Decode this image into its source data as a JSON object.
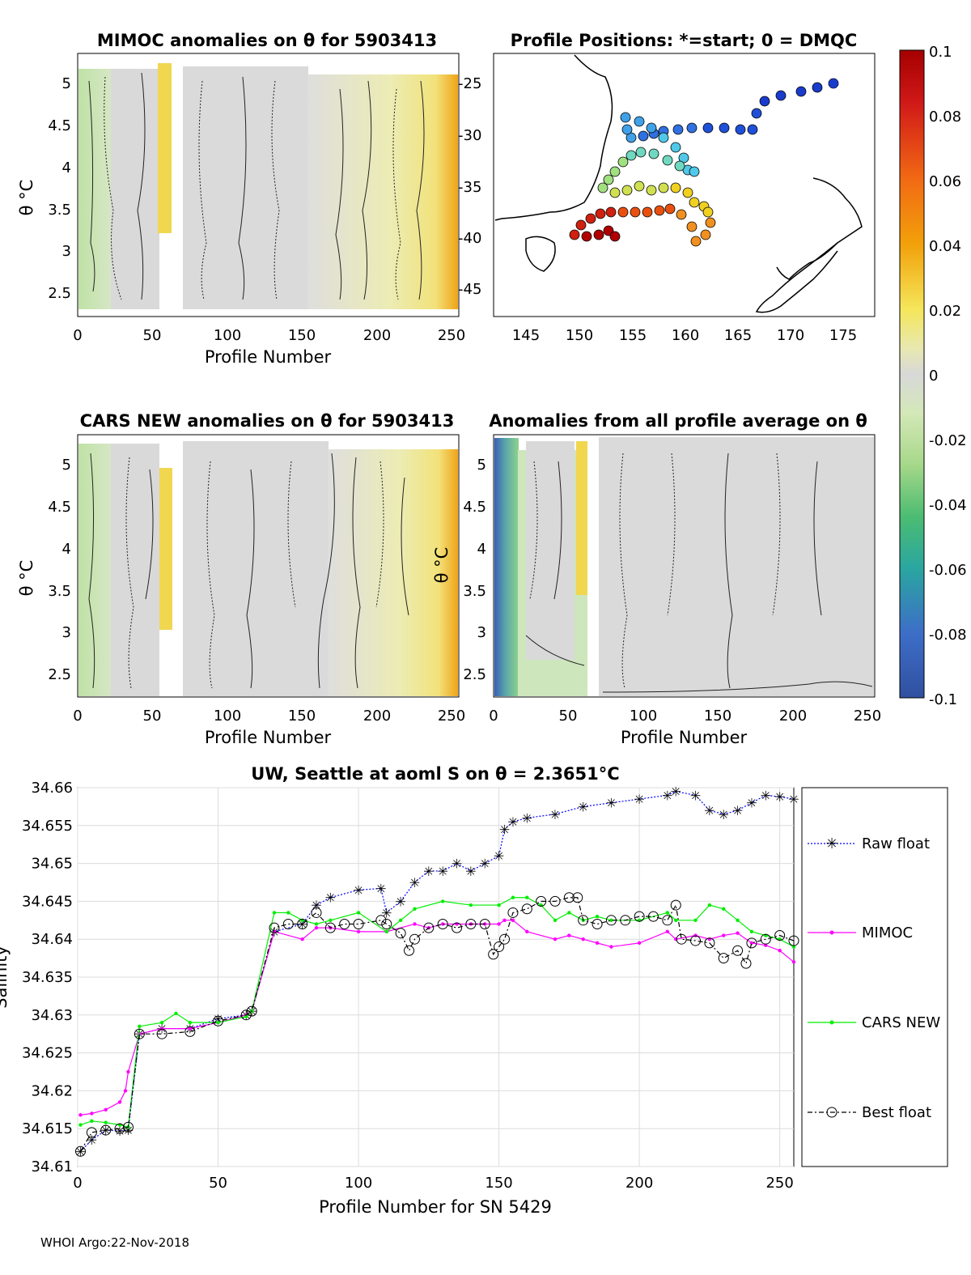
{
  "footer": "WHOI Argo:22-Nov-2018",
  "colorbar": {
    "ticks": [
      "0.1",
      "0.08",
      "0.06",
      "0.04",
      "0.02",
      "0",
      "-0.02",
      "-0.04",
      "-0.06",
      "-0.08",
      "-0.1"
    ],
    "range": [
      -0.1,
      0.1
    ]
  },
  "panels": {
    "mimoc": {
      "title": "MIMOC anomalies on θ  for 5903413",
      "xlabel": "Profile Number",
      "ylabel": "θ °C",
      "xticks": [
        "0",
        "50",
        "100",
        "150",
        "200",
        "250"
      ],
      "yticks": [
        "2.5",
        "3",
        "3.5",
        "4",
        "4.5",
        "5"
      ]
    },
    "map": {
      "title": "Profile Positions: *=start; 0 = DMQC",
      "xticks": [
        "145",
        "150",
        "155",
        "160",
        "165",
        "170",
        "175"
      ],
      "yticks": [
        "-25",
        "-30",
        "-35",
        "-40",
        "-45"
      ]
    },
    "cars": {
      "title": "CARS NEW anomalies on θ for 5903413",
      "xlabel": "Profile Number",
      "ylabel": "θ °C",
      "xticks": [
        "0",
        "50",
        "100",
        "150",
        "200",
        "250"
      ],
      "yticks": [
        "2.5",
        "3",
        "3.5",
        "4",
        "4.5",
        "5"
      ]
    },
    "avg": {
      "title": "Anomalies from all profile average on θ",
      "xlabel": "Profile Number",
      "ylabel": "θ °C",
      "xticks": [
        "0",
        "50",
        "100",
        "150",
        "200",
        "250"
      ],
      "yticks": [
        "2.5",
        "3",
        "3.5",
        "4",
        "4.5",
        "5"
      ]
    }
  },
  "chart_data": {
    "type": "line",
    "title": "UW, Seattle at aoml S on θ = 2.3651°C",
    "xlabel": "Profile Number for SN 5429",
    "ylabel": "Salinity",
    "xlim": [
      0,
      255
    ],
    "ylim": [
      34.61,
      34.66
    ],
    "xticks": [
      "0",
      "50",
      "100",
      "150",
      "200",
      "250"
    ],
    "yticks": [
      "34.61",
      "34.615",
      "34.62",
      "34.625",
      "34.63",
      "34.635",
      "34.64",
      "34.645",
      "34.65",
      "34.655",
      "34.66"
    ],
    "series": [
      {
        "name": "Raw float",
        "color": "#0000ff",
        "marker": "star",
        "x": [
          1,
          5,
          10,
          15,
          18,
          22,
          30,
          40,
          50,
          60,
          62,
          70,
          80,
          85,
          90,
          100,
          108,
          110,
          115,
          120,
          125,
          130,
          135,
          140,
          145,
          150,
          152,
          155,
          160,
          170,
          180,
          190,
          200,
          210,
          213,
          220,
          225,
          230,
          235,
          240,
          245,
          250,
          255
        ],
        "values": [
          34.612,
          34.6135,
          34.6148,
          34.6147,
          34.6148,
          34.6275,
          34.6282,
          34.6282,
          34.6295,
          34.63,
          34.6305,
          34.641,
          34.642,
          34.6445,
          34.6455,
          34.6465,
          34.6467,
          34.6435,
          34.645,
          34.6475,
          34.649,
          34.649,
          34.65,
          34.649,
          34.65,
          34.651,
          34.6545,
          34.6555,
          34.656,
          34.6565,
          34.6575,
          34.658,
          34.6585,
          34.659,
          34.6595,
          34.659,
          34.657,
          34.6565,
          34.657,
          34.658,
          34.659,
          34.6588,
          34.6585
        ]
      },
      {
        "name": "MIMOC",
        "color": "#ff00ff",
        "marker": "dot",
        "x": [
          1,
          5,
          10,
          15,
          17,
          18,
          22,
          30,
          40,
          50,
          60,
          62,
          70,
          80,
          85,
          90,
          100,
          110,
          120,
          125,
          130,
          135,
          140,
          145,
          150,
          152,
          155,
          160,
          170,
          175,
          180,
          185,
          190,
          200,
          210,
          213,
          220,
          225,
          230,
          235,
          240,
          245,
          250,
          255
        ],
        "values": [
          34.6168,
          34.617,
          34.6175,
          34.6185,
          34.62,
          34.6225,
          34.6275,
          34.6282,
          34.6282,
          34.629,
          34.63,
          34.6305,
          34.641,
          34.64,
          34.6415,
          34.6415,
          34.641,
          34.641,
          34.642,
          34.6415,
          34.642,
          34.642,
          34.642,
          34.642,
          34.642,
          34.6425,
          34.6425,
          34.641,
          34.64,
          34.6405,
          34.64,
          34.6395,
          34.639,
          34.6395,
          34.641,
          34.64,
          34.6405,
          34.64,
          34.6405,
          34.6408,
          34.6395,
          34.6392,
          34.6385,
          34.637
        ]
      },
      {
        "name": "CARS NEW",
        "color": "#00ee00",
        "marker": "dot",
        "x": [
          1,
          5,
          10,
          15,
          18,
          22,
          30,
          35,
          40,
          50,
          60,
          62,
          70,
          75,
          80,
          85,
          90,
          100,
          110,
          115,
          120,
          130,
          140,
          150,
          155,
          160,
          165,
          170,
          175,
          180,
          185,
          190,
          200,
          210,
          213,
          220,
          225,
          230,
          235,
          240,
          245,
          250,
          255
        ],
        "values": [
          34.6155,
          34.616,
          34.6158,
          34.6155,
          34.6152,
          34.6285,
          34.629,
          34.6302,
          34.629,
          34.629,
          34.6298,
          34.6305,
          34.6435,
          34.6435,
          34.6425,
          34.642,
          34.6425,
          34.6435,
          34.641,
          34.6425,
          34.644,
          34.645,
          34.6445,
          34.6445,
          34.6455,
          34.6455,
          34.6445,
          34.6425,
          34.6435,
          34.6425,
          34.643,
          34.6425,
          34.6425,
          34.6435,
          34.6425,
          34.6425,
          34.6445,
          34.644,
          34.6425,
          34.641,
          34.6405,
          34.64,
          34.639
        ]
      },
      {
        "name": "Best float",
        "color": "#000000",
        "marker": "circle",
        "x": [
          1,
          5,
          10,
          15,
          18,
          22,
          30,
          40,
          50,
          60,
          62,
          70,
          75,
          80,
          85,
          90,
          95,
          100,
          108,
          110,
          115,
          118,
          120,
          125,
          130,
          135,
          140,
          145,
          148,
          150,
          152,
          155,
          160,
          165,
          170,
          175,
          178,
          180,
          185,
          190,
          195,
          200,
          205,
          210,
          213,
          215,
          220,
          225,
          230,
          235,
          238,
          240,
          245,
          250,
          255
        ],
        "values": [
          34.612,
          34.6145,
          34.6148,
          34.615,
          34.6152,
          34.6275,
          34.6275,
          34.6278,
          34.6292,
          34.63,
          34.6305,
          34.6415,
          34.642,
          34.642,
          34.6435,
          34.6415,
          34.642,
          34.642,
          34.6425,
          34.642,
          34.6408,
          34.6385,
          34.64,
          34.6415,
          34.642,
          34.6415,
          34.642,
          34.642,
          34.638,
          34.639,
          34.64,
          34.6435,
          34.644,
          34.645,
          34.645,
          34.6455,
          34.6455,
          34.6425,
          34.642,
          34.6425,
          34.6425,
          34.643,
          34.643,
          34.6425,
          34.6445,
          34.64,
          34.6398,
          34.6395,
          34.6375,
          34.6385,
          34.6368,
          34.6395,
          34.64,
          34.6405,
          34.6398
        ]
      }
    ]
  }
}
